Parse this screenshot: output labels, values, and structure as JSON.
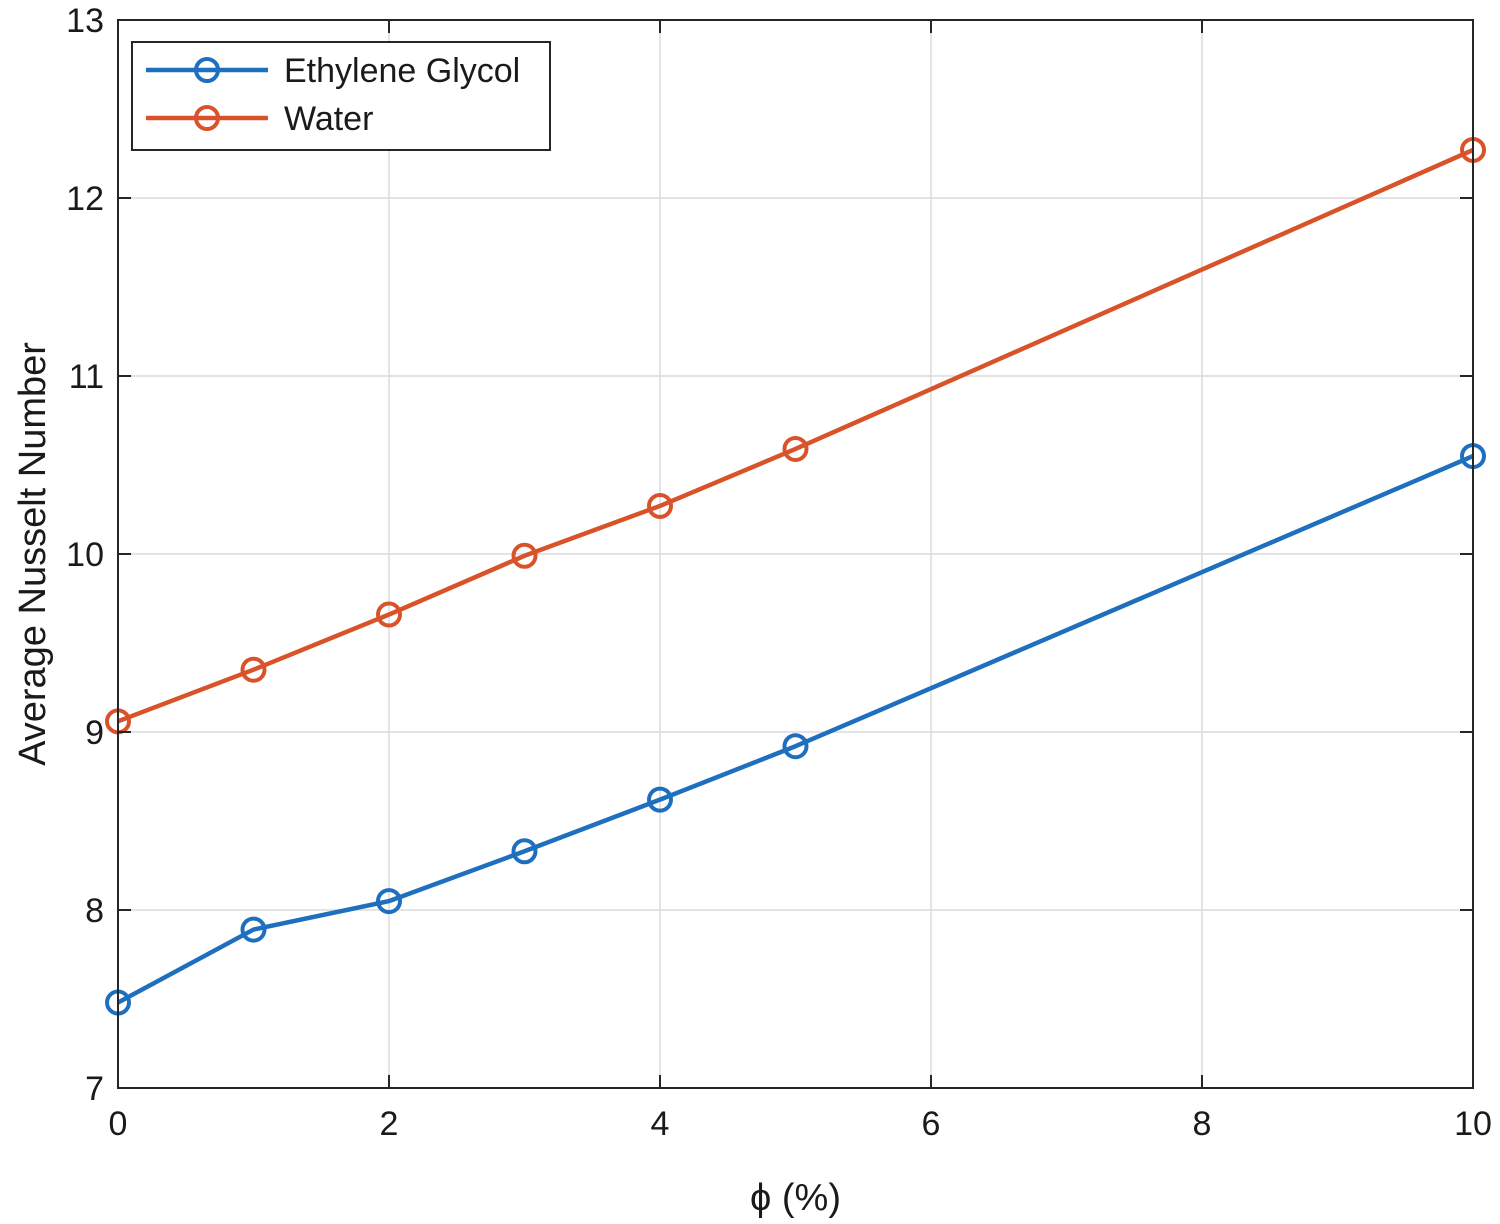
{
  "chart_data": {
    "type": "line",
    "title": "",
    "xlabel": "ϕ (%)",
    "ylabel": "Average Nusselt Number",
    "xlim": [
      0,
      10
    ],
    "ylim": [
      7,
      13
    ],
    "xticks": [
      "0",
      "2",
      "4",
      "6",
      "8",
      "10"
    ],
    "yticks": [
      "7",
      "8",
      "9",
      "10",
      "11",
      "12",
      "13"
    ],
    "grid": true,
    "legend_position": "top-left",
    "x": [
      0,
      1,
      2,
      3,
      4,
      5,
      10
    ],
    "series": [
      {
        "name": "Ethylene Glycol",
        "color": "#1f6fbf",
        "marker": "circle-open",
        "values": [
          7.48,
          7.89,
          8.05,
          8.33,
          8.62,
          8.92,
          10.55
        ]
      },
      {
        "name": "Water",
        "color": "#d9532a",
        "marker": "circle-open",
        "values": [
          9.06,
          9.35,
          9.66,
          9.99,
          10.27,
          10.59,
          12.27
        ]
      }
    ]
  }
}
